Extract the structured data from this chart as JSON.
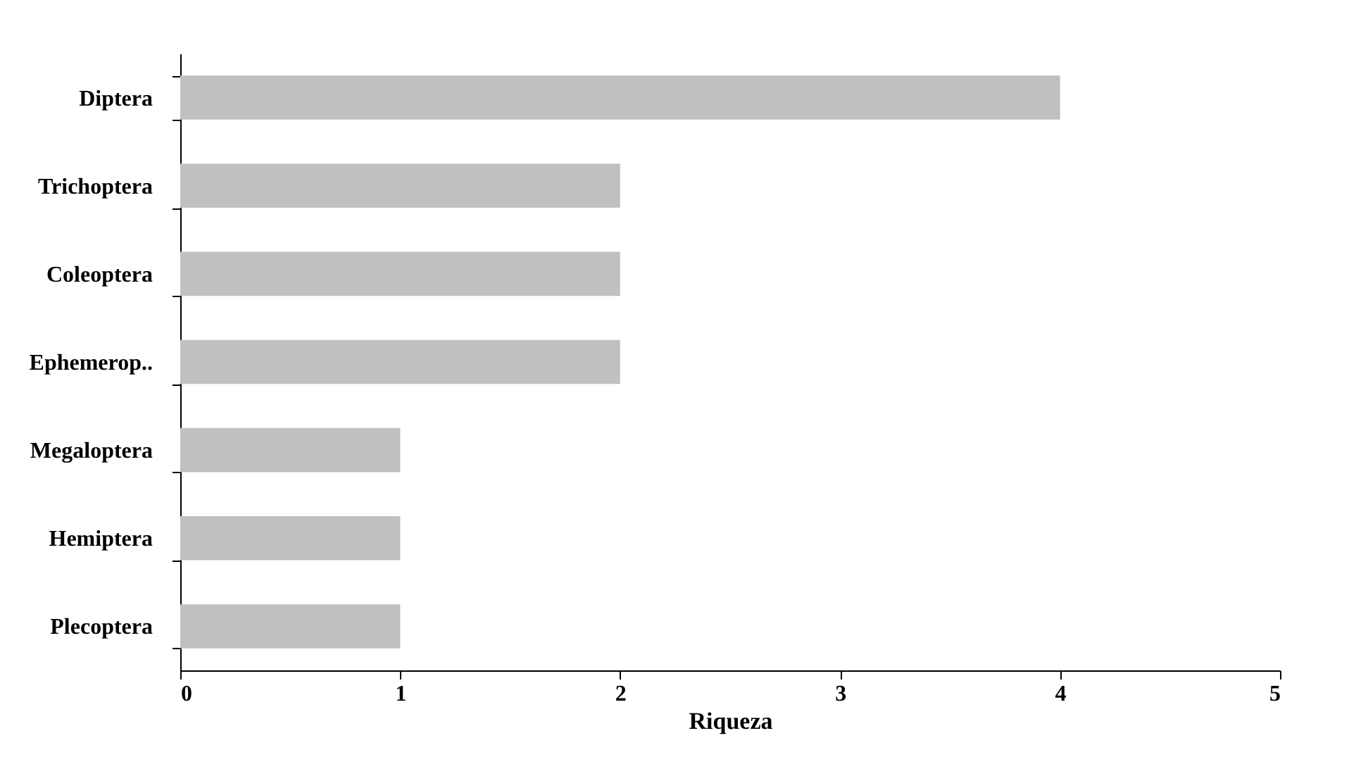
{
  "chart_data": {
    "type": "bar",
    "orientation": "horizontal",
    "xlabel": "Riqueza",
    "categories": [
      "Diptera",
      "Trichoptera",
      "Coleoptera",
      "Ephemerop..",
      "Megaloptera",
      "Hemiptera",
      "Plecoptera"
    ],
    "values": [
      4,
      2,
      2,
      2,
      1,
      1,
      1
    ],
    "color": "#c0c0c0",
    "xlim": [
      0,
      5
    ],
    "xticks": [
      0,
      1,
      2,
      3,
      4,
      5
    ]
  }
}
